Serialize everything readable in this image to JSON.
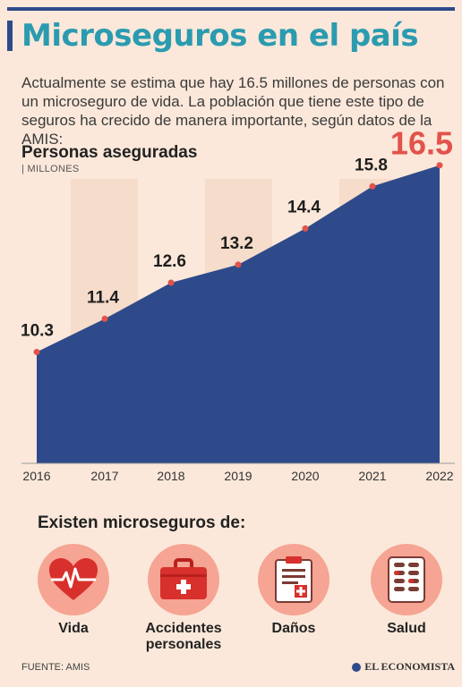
{
  "header": {
    "title": "Microseguros en el país",
    "intro": "Actualmente se estima que hay 16.5 millones de personas con un microseguro de vida. La población que tiene este tipo de seguros ha crecido de manera importante, según datos de la AMIS:"
  },
  "chart_data": {
    "type": "area",
    "title": "Personas aseguradas",
    "unit": "| MILLONES",
    "x": [
      "2016",
      "2017",
      "2018",
      "2019",
      "2020",
      "2021",
      "2022"
    ],
    "values": [
      10.3,
      11.4,
      12.6,
      13.2,
      14.4,
      15.8,
      16.5
    ],
    "data_labels": [
      "10.3",
      "11.4",
      "12.6",
      "13.2",
      "14.4",
      "15.8",
      "16.5"
    ],
    "ylim": [
      6.6,
      16.7
    ],
    "grid": false,
    "colors": {
      "area": "#2e4a8a",
      "points": "#e3524b",
      "highlight_label": "#e3524b",
      "bands": "#f5dccb"
    }
  },
  "categories": {
    "title": "Existen microseguros de:",
    "items": [
      {
        "label": "Vida",
        "icon": "heart-pulse-icon"
      },
      {
        "label": "Accidentes personales",
        "icon": "first-aid-kit-icon"
      },
      {
        "label": "Daños",
        "icon": "clipboard-icon"
      },
      {
        "label": "Salud",
        "icon": "pill-pack-icon"
      }
    ]
  },
  "footer": {
    "source": "FUENTE: AMIS",
    "brand": "EL ECONOMISTA"
  }
}
